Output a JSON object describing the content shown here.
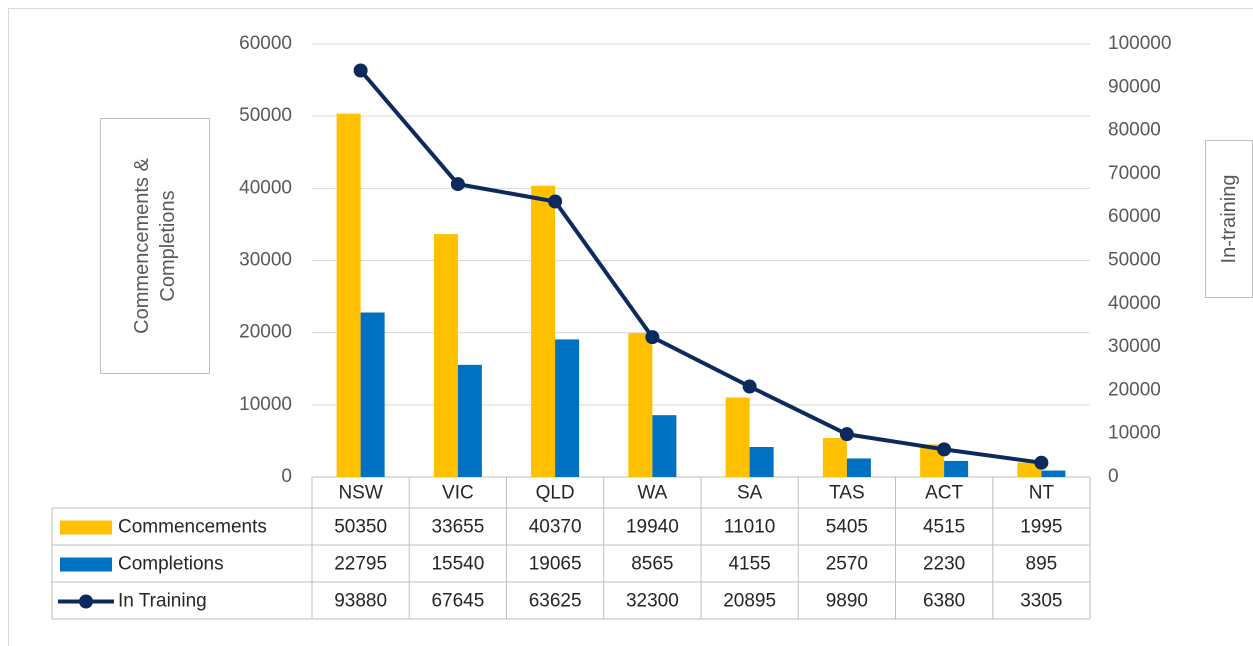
{
  "chart_data": {
    "type": "bar-line-table",
    "categories": [
      "NSW",
      "VIC",
      "QLD",
      "WA",
      "SA",
      "TAS",
      "ACT",
      "NT"
    ],
    "series": [
      {
        "name": "Commencements",
        "color": "#ffc000",
        "type": "bar",
        "values": [
          50350,
          33655,
          40370,
          19940,
          11010,
          5405,
          4515,
          1995
        ]
      },
      {
        "name": "Completions",
        "color": "#0070c0",
        "type": "bar",
        "values": [
          22795,
          15540,
          19065,
          8565,
          4155,
          2570,
          2230,
          895
        ]
      },
      {
        "name": "In Training",
        "color": "#0d2a5e",
        "type": "line",
        "axis": "y2",
        "values": [
          93880,
          67645,
          63625,
          32300,
          20895,
          9890,
          6380,
          3305
        ]
      }
    ],
    "ylabel": "Commencements & Completions",
    "y2label": "In-training",
    "ylim": [
      0,
      60000
    ],
    "yticks": [
      0,
      10000,
      20000,
      30000,
      40000,
      50000,
      60000
    ],
    "y2lim": [
      0,
      100000
    ],
    "y2ticks": [
      0,
      10000,
      20000,
      30000,
      40000,
      50000,
      60000,
      70000,
      80000,
      90000,
      100000
    ],
    "grid": true
  }
}
